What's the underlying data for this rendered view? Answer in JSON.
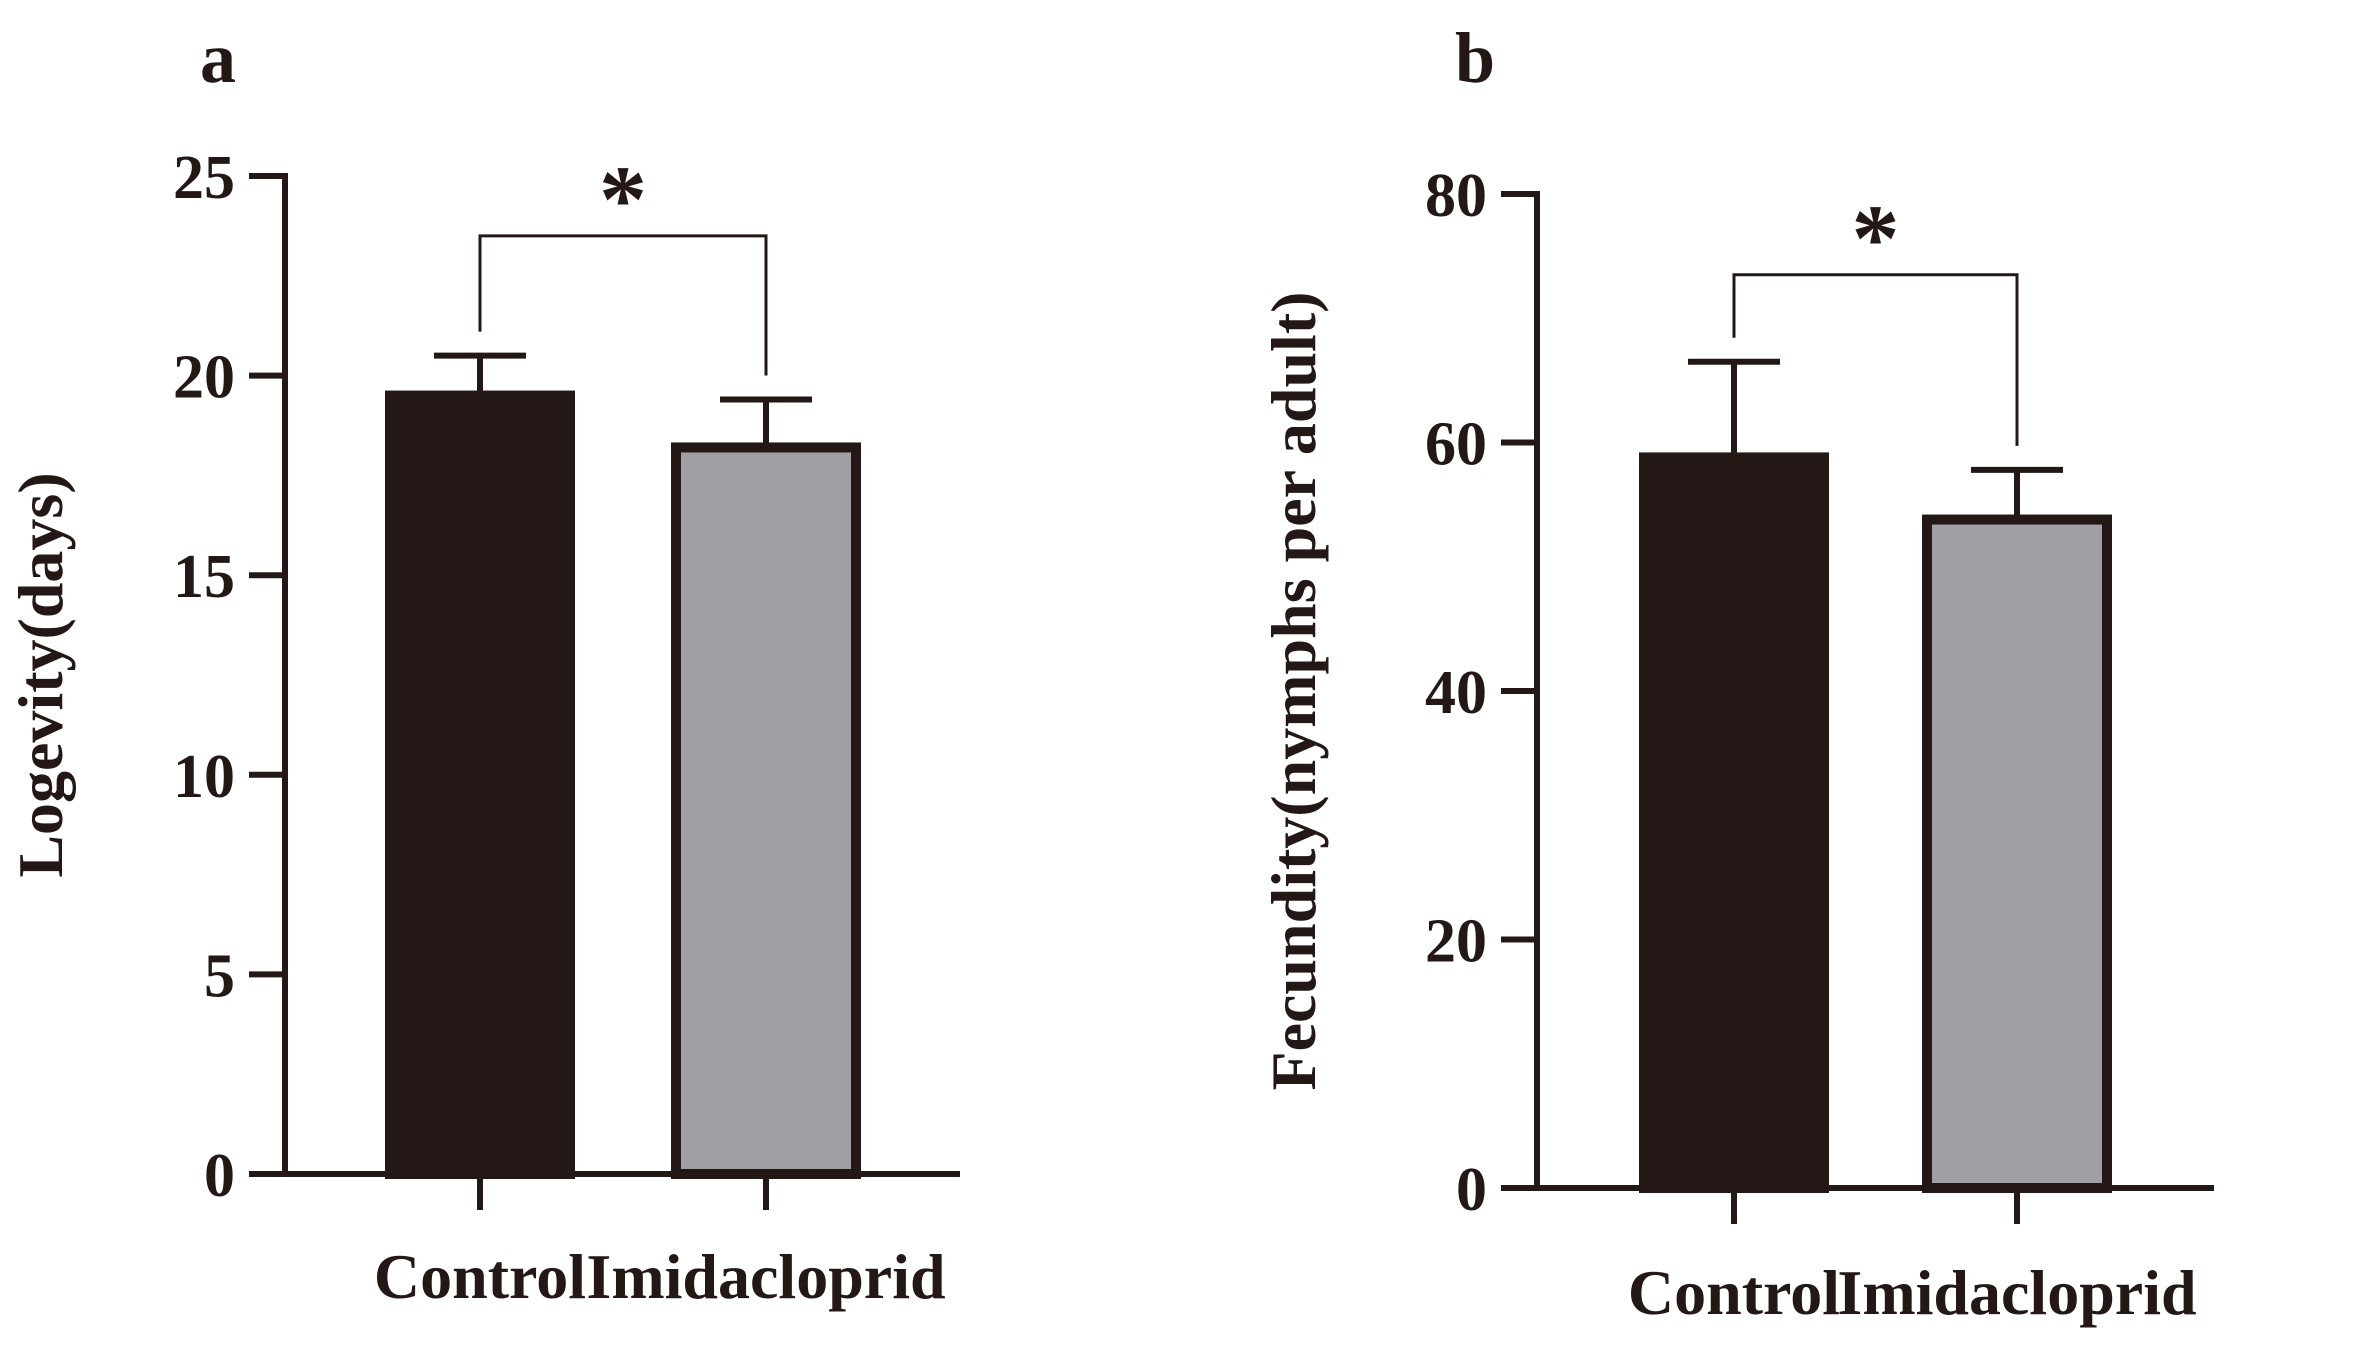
{
  "figure": {
    "panels": [
      "a",
      "b"
    ]
  },
  "colors": {
    "bar_control": "#231815",
    "bar_treatment": "#a09fa4",
    "stroke": "#231815"
  },
  "chart_data": [
    {
      "panel": "a",
      "type": "bar",
      "title": "",
      "categories": [
        "Control",
        "Imidacloprid"
      ],
      "values": [
        19.5,
        18.2
      ],
      "errors": [
        1.0,
        1.2
      ],
      "xlabel": "",
      "ylabel": "Logevity(days)",
      "ylim": [
        0,
        25
      ],
      "yticks": [
        0,
        5,
        10,
        15,
        20,
        25
      ],
      "significance": {
        "between": [
          "Control",
          "Imidacloprid"
        ],
        "label": "*",
        "level": 23.5
      }
    },
    {
      "panel": "b",
      "type": "bar",
      "title": "",
      "categories": [
        "Control",
        "Imidacloprid"
      ],
      "values": [
        58.8,
        53.8
      ],
      "errors": [
        7.7,
        4.0
      ],
      "xlabel": "",
      "ylabel": "Fecundity(nymphs per adult)",
      "ylim": [
        0,
        80
      ],
      "yticks": [
        0,
        20,
        40,
        60,
        80
      ],
      "significance": {
        "between": [
          "Control",
          "Imidacloprid"
        ],
        "label": "*",
        "level": 73.5
      }
    }
  ]
}
